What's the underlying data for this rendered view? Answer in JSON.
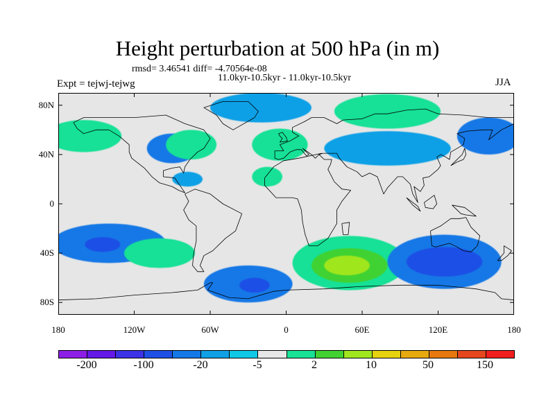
{
  "title": "Height perturbation at 500 hPa (in m)",
  "stats": "rmsd= 3.46541 diff= -4.70564e-08",
  "period": "11.0kyr-10.5kyr - 11.0kyr-10.5kyr",
  "expt": "Expt = tejwj-tejwg",
  "season": "JJA",
  "lat_ticks": [
    {
      "label": "80N",
      "lat": 80
    },
    {
      "label": "40N",
      "lat": 40
    },
    {
      "label": "0",
      "lat": 0
    },
    {
      "label": "40S",
      "lat": -40
    },
    {
      "label": "80S",
      "lat": -80
    }
  ],
  "lon_ticks": [
    {
      "label": "180",
      "lon": -180
    },
    {
      "label": "120W",
      "lon": -120
    },
    {
      "label": "60W",
      "lon": -60
    },
    {
      "label": "0",
      "lon": 0
    },
    {
      "label": "60E",
      "lon": 60
    },
    {
      "label": "120E",
      "lon": 120
    },
    {
      "label": "180",
      "lon": 180
    }
  ],
  "legend": {
    "colors": [
      "#8c1ee6",
      "#6419e6",
      "#3c32e6",
      "#1e50e6",
      "#1478e6",
      "#0fa0e6",
      "#0fc8e6",
      "#e6e6e6",
      "#19e196",
      "#41d232",
      "#a0e61e",
      "#e6d20f",
      "#e6aa0f",
      "#e6780f",
      "#e6461e",
      "#f01e1e"
    ],
    "labels": [
      {
        "text": "-200",
        "index": 1
      },
      {
        "text": "-100",
        "index": 3
      },
      {
        "text": "-20",
        "index": 5
      },
      {
        "text": "-5",
        "index": 7
      },
      {
        "text": "2",
        "index": 9
      },
      {
        "text": "10",
        "index": 11
      },
      {
        "text": "50",
        "index": 13
      },
      {
        "text": "150",
        "index": 15
      }
    ]
  },
  "map": {
    "lon_range": [
      -180,
      180
    ],
    "lat_range": [
      -90,
      90
    ],
    "background_color": "#e6e6e6",
    "blobs": [
      {
        "name": "n-atlantic-west-low",
        "lon": -90,
        "lat": 45,
        "rx": 20,
        "ry": 12,
        "level": -3
      },
      {
        "name": "n-pacific-ridge",
        "lon": -160,
        "lat": 55,
        "rx": 30,
        "ry": 13,
        "level": 1
      },
      {
        "name": "n-america-ridge",
        "lon": -75,
        "lat": 48,
        "rx": 20,
        "ry": 12,
        "level": 1
      },
      {
        "name": "arctic-low",
        "lon": -20,
        "lat": 78,
        "rx": 40,
        "ry": 12,
        "level": -2
      },
      {
        "name": "n-atlantic-ridge",
        "lon": -5,
        "lat": 48,
        "rx": 22,
        "ry": 13,
        "level": 1
      },
      {
        "name": "siberia-ridge",
        "lon": 80,
        "lat": 75,
        "rx": 42,
        "ry": 14,
        "level": 1
      },
      {
        "name": "central-asia-low",
        "lon": 80,
        "lat": 45,
        "rx": 50,
        "ry": 14,
        "level": -2
      },
      {
        "name": "n-pacific-east-low",
        "lon": 160,
        "lat": 55,
        "rx": 25,
        "ry": 15,
        "level": -3
      },
      {
        "name": "caribbean-low",
        "lon": -78,
        "lat": 20,
        "rx": 12,
        "ry": 6,
        "level": -2
      },
      {
        "name": "sahara-ridge",
        "lon": -15,
        "lat": 22,
        "rx": 12,
        "ry": 8,
        "level": 1
      },
      {
        "name": "s-pacific-low",
        "lon": -140,
        "lat": -32,
        "rx": 45,
        "ry": 16,
        "level": -3
      },
      {
        "name": "s-pacific-core",
        "lon": -145,
        "lat": -33,
        "rx": 14,
        "ry": 6,
        "level": -4
      },
      {
        "name": "s-america-ridge",
        "lon": -100,
        "lat": -40,
        "rx": 28,
        "ry": 12,
        "level": 1
      },
      {
        "name": "s-atlantic-low",
        "lon": -30,
        "lat": -65,
        "rx": 35,
        "ry": 15,
        "level": -3
      },
      {
        "name": "s-atlantic-core",
        "lon": -25,
        "lat": -66,
        "rx": 12,
        "ry": 6,
        "level": -4
      },
      {
        "name": "indian-ocean-ridge",
        "lon": 50,
        "lat": -48,
        "rx": 45,
        "ry": 22,
        "level": 1
      },
      {
        "name": "indian-ocean-core",
        "lon": 50,
        "lat": -50,
        "rx": 30,
        "ry": 14,
        "level": 2
      },
      {
        "name": "indian-ocean-peak",
        "lon": 48,
        "lat": -50,
        "rx": 18,
        "ry": 8,
        "level": 3
      },
      {
        "name": "s-australia-low",
        "lon": 125,
        "lat": -47,
        "rx": 45,
        "ry": 22,
        "level": -3
      },
      {
        "name": "s-australia-core",
        "lon": 125,
        "lat": -47,
        "rx": 30,
        "ry": 12,
        "level": -4
      }
    ],
    "coastlines": [
      {
        "name": "north-america",
        "points": [
          [
            -168,
            66
          ],
          [
            -160,
            70
          ],
          [
            -140,
            70
          ],
          [
            -120,
            70
          ],
          [
            -95,
            72
          ],
          [
            -80,
            65
          ],
          [
            -65,
            60
          ],
          [
            -60,
            53
          ],
          [
            -65,
            45
          ],
          [
            -70,
            42
          ],
          [
            -76,
            36
          ],
          [
            -80,
            30
          ],
          [
            -81,
            25
          ],
          [
            -84,
            30
          ],
          [
            -90,
            29
          ],
          [
            -97,
            27
          ],
          [
            -97,
            22
          ],
          [
            -88,
            21
          ],
          [
            -84,
            15
          ],
          [
            -80,
            9
          ],
          [
            -85,
            11
          ],
          [
            -90,
            14
          ],
          [
            -100,
            17
          ],
          [
            -106,
            22
          ],
          [
            -112,
            29
          ],
          [
            -117,
            33
          ],
          [
            -122,
            37
          ],
          [
            -124,
            42
          ],
          [
            -124,
            48
          ],
          [
            -132,
            55
          ],
          [
            -140,
            60
          ],
          [
            -150,
            60
          ],
          [
            -160,
            57
          ],
          [
            -165,
            61
          ],
          [
            -168,
            66
          ]
        ]
      },
      {
        "name": "greenland",
        "points": [
          [
            -50,
            83
          ],
          [
            -30,
            83
          ],
          [
            -22,
            75
          ],
          [
            -25,
            70
          ],
          [
            -42,
            60
          ],
          [
            -50,
            65
          ],
          [
            -55,
            72
          ],
          [
            -65,
            78
          ],
          [
            -50,
            83
          ]
        ]
      },
      {
        "name": "south-america",
        "points": [
          [
            -80,
            8
          ],
          [
            -77,
            2
          ],
          [
            -81,
            -5
          ],
          [
            -77,
            -13
          ],
          [
            -71,
            -18
          ],
          [
            -71,
            -30
          ],
          [
            -73,
            -40
          ],
          [
            -74,
            -50
          ],
          [
            -70,
            -55
          ],
          [
            -65,
            -55
          ],
          [
            -68,
            -50
          ],
          [
            -65,
            -42
          ],
          [
            -58,
            -38
          ],
          [
            -48,
            -28
          ],
          [
            -40,
            -22
          ],
          [
            -35,
            -8
          ],
          [
            -50,
            0
          ],
          [
            -60,
            8
          ],
          [
            -72,
            12
          ],
          [
            -80,
            8
          ]
        ]
      },
      {
        "name": "africa-eurasia",
        "points": [
          [
            -17,
            21
          ],
          [
            -17,
            15
          ],
          [
            -8,
            5
          ],
          [
            5,
            5
          ],
          [
            9,
            4
          ],
          [
            12,
            -5
          ],
          [
            13,
            -15
          ],
          [
            15,
            -25
          ],
          [
            18,
            -34
          ],
          [
            25,
            -34
          ],
          [
            33,
            -28
          ],
          [
            40,
            -16
          ],
          [
            40,
            -5
          ],
          [
            44,
            2
          ],
          [
            51,
            11
          ],
          [
            44,
            12
          ],
          [
            38,
            18
          ],
          [
            33,
            28
          ],
          [
            35,
            32
          ],
          [
            36,
            36
          ],
          [
            30,
            36
          ],
          [
            26,
            40
          ],
          [
            29,
            41
          ],
          [
            40,
            41
          ],
          [
            42,
            37
          ],
          [
            48,
            30
          ],
          [
            56,
            26
          ],
          [
            60,
            22
          ],
          [
            66,
            25
          ],
          [
            72,
            22
          ],
          [
            77,
            8
          ],
          [
            80,
            13
          ],
          [
            88,
            22
          ],
          [
            92,
            22
          ],
          [
            98,
            16
          ],
          [
            100,
            8
          ],
          [
            104,
            1
          ],
          [
            101,
            14
          ],
          [
            106,
            10
          ],
          [
            109,
            15
          ],
          [
            108,
            21
          ],
          [
            113,
            22
          ],
          [
            120,
            28
          ],
          [
            122,
            31
          ],
          [
            119,
            38
          ],
          [
            122,
            40
          ],
          [
            126,
            38
          ],
          [
            129,
            36
          ],
          [
            130,
            42
          ],
          [
            140,
            48
          ],
          [
            141,
            53
          ],
          [
            135,
            57
          ],
          [
            143,
            59
          ],
          [
            155,
            60
          ],
          [
            163,
            60
          ],
          [
            160,
            52
          ],
          [
            170,
            60
          ],
          [
            180,
            65
          ],
          [
            180,
            70
          ],
          [
            160,
            70
          ],
          [
            140,
            72
          ],
          [
            120,
            73
          ],
          [
            110,
            77
          ],
          [
            95,
            76
          ],
          [
            80,
            73
          ],
          [
            70,
            73
          ],
          [
            60,
            69
          ],
          [
            45,
            68
          ],
          [
            40,
            65
          ],
          [
            30,
            70
          ],
          [
            20,
            70
          ],
          [
            15,
            67
          ],
          [
            5,
            62
          ],
          [
            5,
            58
          ],
          [
            10,
            55
          ],
          [
            8,
            54
          ],
          [
            3,
            51
          ],
          [
            -5,
            48
          ],
          [
            -2,
            43
          ],
          [
            -9,
            43
          ],
          [
            -9,
            37
          ],
          [
            -6,
            36
          ],
          [
            -2,
            37
          ],
          [
            3,
            42
          ],
          [
            8,
            44
          ],
          [
            12,
            44
          ],
          [
            16,
            39
          ],
          [
            18,
            40
          ],
          [
            13,
            45
          ],
          [
            20,
            40
          ],
          [
            23,
            37
          ],
          [
            26,
            40
          ],
          [
            28,
            41
          ],
          [
            10,
            37
          ],
          [
            -2,
            35
          ],
          [
            -10,
            30
          ],
          [
            -17,
            21
          ]
        ]
      },
      {
        "name": "australia",
        "points": [
          [
            114,
            -22
          ],
          [
            122,
            -18
          ],
          [
            130,
            -12
          ],
          [
            137,
            -12
          ],
          [
            142,
            -11
          ],
          [
            146,
            -19
          ],
          [
            153,
            -26
          ],
          [
            151,
            -34
          ],
          [
            146,
            -39
          ],
          [
            140,
            -38
          ],
          [
            135,
            -35
          ],
          [
            129,
            -32
          ],
          [
            118,
            -35
          ],
          [
            115,
            -34
          ],
          [
            114,
            -22
          ]
        ]
      },
      {
        "name": "antarctica",
        "points": [
          [
            -180,
            -78
          ],
          [
            -150,
            -77
          ],
          [
            -120,
            -74
          ],
          [
            -90,
            -72
          ],
          [
            -70,
            -70
          ],
          [
            -60,
            -64
          ],
          [
            -58,
            -64
          ],
          [
            -62,
            -70
          ],
          [
            -45,
            -76
          ],
          [
            -30,
            -77
          ],
          [
            -10,
            -71
          ],
          [
            0,
            -70
          ],
          [
            30,
            -69
          ],
          [
            60,
            -67
          ],
          [
            90,
            -66
          ],
          [
            120,
            -66
          ],
          [
            150,
            -69
          ],
          [
            165,
            -72
          ],
          [
            170,
            -77
          ],
          [
            180,
            -78
          ]
        ]
      },
      {
        "name": "uk",
        "points": [
          [
            -5,
            50
          ],
          [
            1,
            51
          ],
          [
            0,
            54
          ],
          [
            -3,
            58
          ],
          [
            -6,
            57
          ],
          [
            -5,
            55
          ],
          [
            -3,
            53
          ],
          [
            -5,
            50
          ]
        ]
      },
      {
        "name": "japan",
        "points": [
          [
            130,
            31
          ],
          [
            135,
            34
          ],
          [
            140,
            36
          ],
          [
            142,
            40
          ],
          [
            141,
            45
          ],
          [
            139,
            40
          ],
          [
            134,
            35
          ],
          [
            130,
            31
          ]
        ]
      },
      {
        "name": "new-zealand",
        "points": [
          [
            172,
            -34
          ],
          [
            178,
            -38
          ],
          [
            175,
            -42
          ],
          [
            170,
            -46
          ],
          [
            167,
            -46
          ],
          [
            172,
            -40
          ],
          [
            172,
            -34
          ]
        ]
      },
      {
        "name": "madagascar",
        "points": [
          [
            44,
            -16
          ],
          [
            50,
            -15
          ],
          [
            49,
            -25
          ],
          [
            45,
            -25
          ],
          [
            44,
            -16
          ]
        ]
      },
      {
        "name": "borneo",
        "points": [
          [
            109,
            1
          ],
          [
            117,
            7
          ],
          [
            119,
            0
          ],
          [
            116,
            -4
          ],
          [
            110,
            -3
          ],
          [
            109,
            1
          ]
        ]
      },
      {
        "name": "new-guinea",
        "points": [
          [
            131,
            -1
          ],
          [
            141,
            -3
          ],
          [
            150,
            -10
          ],
          [
            142,
            -9
          ],
          [
            138,
            -8
          ],
          [
            131,
            -1
          ]
        ]
      },
      {
        "name": "sumatra",
        "points": [
          [
            95,
            5
          ],
          [
            104,
            -2
          ],
          [
            106,
            -6
          ],
          [
            100,
            -1
          ],
          [
            95,
            5
          ]
        ]
      }
    ]
  }
}
